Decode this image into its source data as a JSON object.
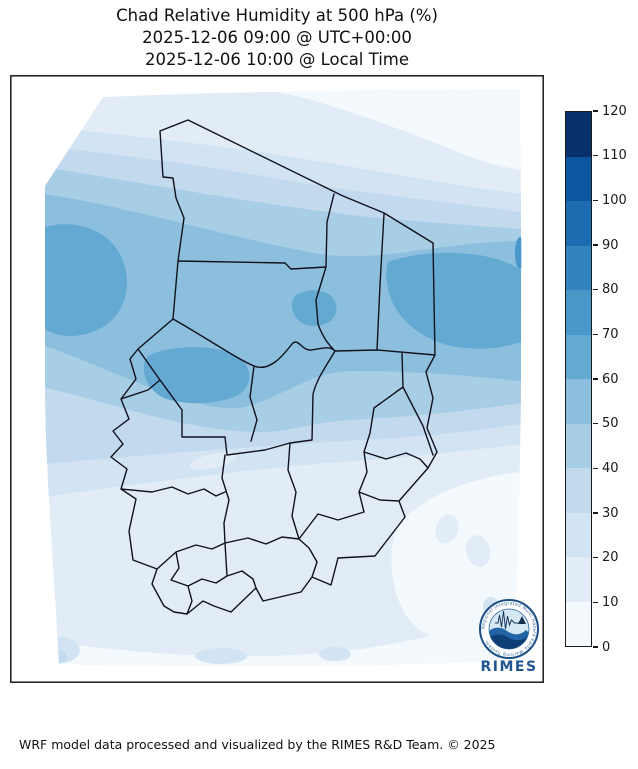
{
  "title": {
    "line1": "Chad Relative Humidity at 500 hPa (%)",
    "line2": "2025-12-06 09:00 @ UTC+00:00",
    "line3": "2025-12-06 10:00 @ Local Time"
  },
  "map": {
    "region": "Chad",
    "variable": "Relative Humidity",
    "level": "500 hPa",
    "units": "%"
  },
  "colorbar": {
    "min": 0,
    "max": 120,
    "ticks": [
      0,
      10,
      20,
      30,
      40,
      50,
      60,
      70,
      80,
      90,
      100,
      110,
      120
    ],
    "band_colors": [
      "#f4f9fe",
      "#e2ecf7",
      "#d2e3f3",
      "#c3daee",
      "#a8cee5",
      "#8bbfdd",
      "#64a9d2",
      "#4a98c9",
      "#3283be",
      "#1d6cb1",
      "#0c559f",
      "#08306b"
    ]
  },
  "chart_data": {
    "type": "heatmap",
    "title": "Chad Relative Humidity at 500 hPa (%)",
    "units": "%",
    "legend_ticks": [
      0,
      10,
      20,
      30,
      40,
      50,
      60,
      70,
      80,
      90,
      100,
      110,
      120
    ],
    "legend_position": "right",
    "field_summary": {
      "north_edge": "10-30",
      "northwest": "50-70",
      "central_band": "50-70",
      "east_central": "60-80",
      "south_central": "20-40",
      "far_south_and_southeast": "0-20"
    }
  },
  "logo": {
    "name": "RIMES",
    "ring_text": "Regional Integrated Multi-Hazard Early Warning System"
  },
  "footer": {
    "text": "WRF model data processed and visualized by the RIMES R&D Team. © 2025"
  }
}
